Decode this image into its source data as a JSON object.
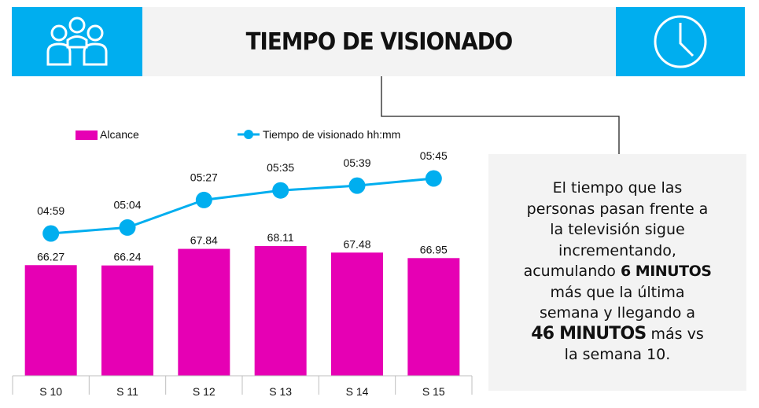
{
  "header": {
    "title": "TIEMPO DE VISIONADO",
    "left_icon": "people-group-icon",
    "right_icon": "clock-icon",
    "accent_color": "#00aeef",
    "panel_color": "#f3f3f3"
  },
  "chart_data": {
    "type": "bar",
    "categories": [
      "S 10",
      "S 11",
      "S 12",
      "S 13",
      "S 14",
      "S 15"
    ],
    "series": [
      {
        "name": "Alcance",
        "type": "bar",
        "color": "#e600b4",
        "values": [
          66.27,
          66.24,
          67.84,
          68.11,
          67.48,
          66.95
        ],
        "labels": [
          "66.27",
          "66.24",
          "67.84",
          "68.11",
          "67.48",
          "66.95"
        ]
      },
      {
        "name": "Tiempo de visionado hh:mm",
        "type": "line",
        "color": "#00aeef",
        "values": [
          "04:59",
          "05:04",
          "05:27",
          "05:35",
          "05:39",
          "05:45"
        ],
        "labels": [
          "04:59",
          "05:04",
          "05:27",
          "05:35",
          "05:39",
          "05:45"
        ]
      }
    ],
    "legend_position": "top-left"
  },
  "note": {
    "lines": [
      "El tiempo que las",
      "personas pasan frente a",
      "la televisión sigue",
      "incrementando,"
    ],
    "line5_pre": "acumulando ",
    "line5_bold": "6 MINUTOS",
    "line6": "más que la última",
    "line7": "semana y llegando a",
    "line8_bold": "46 MINUTOS",
    "line8_post": " más vs",
    "line9": "la semana 10."
  }
}
